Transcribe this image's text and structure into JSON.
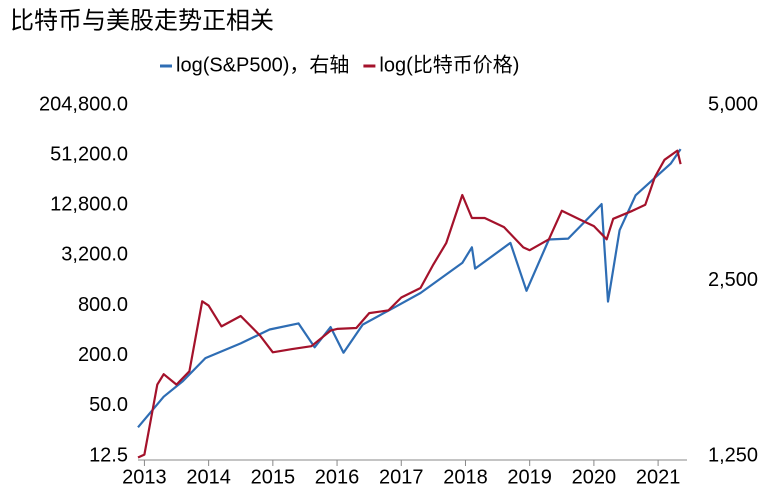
{
  "chart_data": {
    "type": "line",
    "title": "比特币与美股走势正相关",
    "log_scale": true,
    "legend": "top",
    "xlim": [
      2012.9,
      2021.45
    ],
    "xticks": [
      2013,
      2014,
      2015,
      2016,
      2017,
      2018,
      2019,
      2020,
      2021
    ],
    "ylim": [
      12.5,
      204800
    ],
    "yticks": [
      {
        "value": 12.5,
        "label": "12.5"
      },
      {
        "value": 50,
        "label": "50.0"
      },
      {
        "value": 200,
        "label": "200.0"
      },
      {
        "value": 800,
        "label": "800.0"
      },
      {
        "value": 3200,
        "label": "3,200.0"
      },
      {
        "value": 12800,
        "label": "12,800.0"
      },
      {
        "value": 51200,
        "label": "51,200.0"
      },
      {
        "value": 204800,
        "label": "204,800.0"
      }
    ],
    "y2lim": [
      1250,
      5000
    ],
    "y2ticks": [
      {
        "value": 1250,
        "label": "1,250"
      },
      {
        "value": 2500,
        "label": "2,500"
      },
      {
        "value": 5000,
        "label": "5,000"
      }
    ],
    "series": [
      {
        "name": "log(S&P500)，右轴",
        "color": "#2e6db4",
        "axis": "y2",
        "x": [
          2012.9,
          2013.3,
          2013.6,
          2013.95,
          2014.5,
          2014.95,
          2015.4,
          2015.65,
          2015.9,
          2016.1,
          2016.4,
          2016.9,
          2017.3,
          2017.95,
          2018.1,
          2018.15,
          2018.7,
          2018.95,
          2019.3,
          2019.6,
          2019.95,
          2020.12,
          2020.22,
          2020.4,
          2020.65,
          2020.95,
          2021.2,
          2021.35
        ],
        "values": [
          1400,
          1580,
          1680,
          1840,
          1950,
          2060,
          2110,
          1920,
          2080,
          1880,
          2100,
          2250,
          2380,
          2680,
          2850,
          2620,
          2900,
          2400,
          2940,
          2950,
          3230,
          3380,
          2300,
          3050,
          3500,
          3750,
          3970,
          4200
        ]
      },
      {
        "name": "log(比特币价格)",
        "color": "#a4122b",
        "x": [
          2012.9,
          2013.0,
          2013.2,
          2013.3,
          2013.5,
          2013.7,
          2013.9,
          2014.0,
          2014.2,
          2014.5,
          2014.8,
          2015.0,
          2015.3,
          2015.6,
          2015.9,
          2016.0,
          2016.3,
          2016.5,
          2016.8,
          2017.0,
          2017.3,
          2017.5,
          2017.7,
          2017.95,
          2018.1,
          2018.3,
          2018.6,
          2018.9,
          2019.0,
          2019.3,
          2019.5,
          2019.8,
          2020.0,
          2020.2,
          2020.3,
          2020.6,
          2020.8,
          2020.95,
          2021.1,
          2021.3,
          2021.35
        ],
        "values": [
          12,
          13,
          90,
          120,
          90,
          130,
          900,
          800,
          450,
          600,
          350,
          220,
          240,
          260,
          400,
          420,
          430,
          650,
          700,
          1000,
          1300,
          2500,
          4500,
          17000,
          9000,
          9000,
          7000,
          4000,
          3700,
          5000,
          11000,
          8500,
          7200,
          5000,
          8800,
          11000,
          13000,
          28000,
          45000,
          58000,
          40000
        ]
      }
    ]
  }
}
